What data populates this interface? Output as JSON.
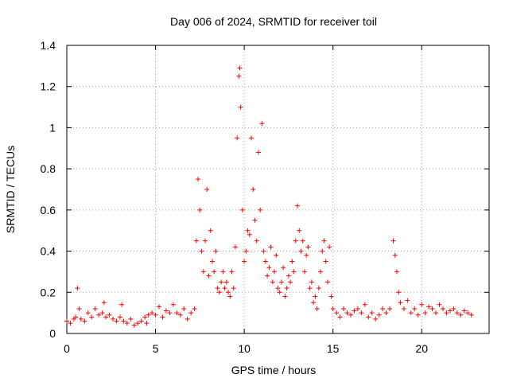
{
  "chart_data": {
    "type": "scatter",
    "title": "Day 006 of 2024, SRMTID for receiver toil",
    "xlabel": "GPS time / hours",
    "ylabel": "SRMTID / TECUs",
    "xlim": [
      0,
      23.8
    ],
    "ylim": [
      0,
      1.4
    ],
    "xticks": [
      0,
      5,
      10,
      15,
      20
    ],
    "xtick_labels": [
      "0",
      "5",
      "10",
      "15",
      "20"
    ],
    "yticks": [
      0,
      0.2,
      0.4,
      0.6,
      0.8,
      1.0,
      1.2,
      1.4
    ],
    "ytick_labels": [
      "0",
      "0.2",
      "0.4",
      "0.6",
      "0.8",
      "1",
      "1.2",
      "1.4"
    ],
    "grid": true,
    "marker": "plus",
    "color": "#ff0000",
    "series": [
      {
        "name": "toil",
        "x": [
          0.0,
          0.2,
          0.4,
          0.5,
          0.6,
          0.7,
          0.8,
          1.0,
          1.2,
          1.4,
          1.6,
          1.8,
          2.0,
          2.1,
          2.2,
          2.4,
          2.6,
          2.8,
          3.0,
          3.1,
          3.2,
          3.4,
          3.6,
          3.8,
          4.0,
          4.2,
          4.4,
          4.5,
          4.6,
          4.8,
          5.0,
          5.2,
          5.4,
          5.6,
          5.8,
          6.0,
          6.2,
          6.4,
          6.6,
          6.8,
          7.0,
          7.2,
          7.3,
          7.4,
          7.5,
          7.6,
          7.7,
          7.8,
          7.9,
          8.0,
          8.1,
          8.2,
          8.3,
          8.4,
          8.5,
          8.6,
          8.7,
          8.8,
          8.9,
          9.0,
          9.1,
          9.2,
          9.3,
          9.4,
          9.5,
          9.6,
          9.7,
          9.75,
          9.8,
          9.9,
          10.0,
          10.1,
          10.2,
          10.3,
          10.4,
          10.5,
          10.6,
          10.7,
          10.8,
          10.9,
          11.0,
          11.1,
          11.2,
          11.3,
          11.4,
          11.5,
          11.6,
          11.7,
          11.8,
          11.9,
          12.0,
          12.1,
          12.2,
          12.3,
          12.4,
          12.5,
          12.6,
          12.7,
          12.8,
          12.9,
          13.0,
          13.1,
          13.2,
          13.3,
          13.4,
          13.5,
          13.6,
          13.7,
          13.8,
          13.9,
          14.0,
          14.1,
          14.2,
          14.3,
          14.4,
          14.5,
          14.6,
          14.7,
          14.8,
          14.9,
          15.0,
          15.2,
          15.4,
          15.6,
          15.8,
          16.0,
          16.2,
          16.4,
          16.6,
          16.8,
          17.0,
          17.2,
          17.4,
          17.6,
          17.8,
          18.0,
          18.2,
          18.4,
          18.5,
          18.6,
          18.7,
          18.8,
          19.0,
          19.2,
          19.4,
          19.6,
          19.8,
          20.0,
          20.2,
          20.4,
          20.6,
          20.8,
          21.0,
          21.2,
          21.4,
          21.6,
          21.8,
          22.0,
          22.2,
          22.4,
          22.6,
          22.8
        ],
        "y": [
          0.06,
          0.05,
          0.07,
          0.08,
          0.22,
          0.12,
          0.07,
          0.06,
          0.1,
          0.08,
          0.12,
          0.09,
          0.1,
          0.15,
          0.08,
          0.09,
          0.07,
          0.06,
          0.08,
          0.14,
          0.06,
          0.05,
          0.07,
          0.04,
          0.05,
          0.06,
          0.08,
          0.05,
          0.09,
          0.1,
          0.09,
          0.13,
          0.08,
          0.11,
          0.1,
          0.14,
          0.1,
          0.09,
          0.12,
          0.07,
          0.1,
          0.12,
          0.45,
          0.75,
          0.6,
          0.4,
          0.3,
          0.45,
          0.7,
          0.28,
          0.5,
          0.35,
          0.3,
          0.4,
          0.22,
          0.2,
          0.25,
          0.3,
          0.22,
          0.25,
          0.2,
          0.18,
          0.3,
          0.22,
          0.42,
          0.95,
          1.25,
          1.29,
          1.1,
          0.6,
          0.35,
          0.4,
          0.5,
          0.48,
          0.95,
          0.7,
          0.55,
          0.45,
          0.88,
          0.6,
          1.02,
          0.4,
          0.35,
          0.28,
          0.32,
          0.42,
          0.25,
          0.3,
          0.38,
          0.22,
          0.2,
          0.25,
          0.32,
          0.18,
          0.22,
          0.28,
          0.25,
          0.35,
          0.3,
          0.45,
          0.62,
          0.5,
          0.4,
          0.45,
          0.3,
          0.38,
          0.42,
          0.22,
          0.25,
          0.15,
          0.18,
          0.12,
          0.22,
          0.3,
          0.4,
          0.45,
          0.35,
          0.25,
          0.42,
          0.18,
          0.12,
          0.1,
          0.08,
          0.12,
          0.1,
          0.09,
          0.11,
          0.12,
          0.1,
          0.14,
          0.08,
          0.1,
          0.07,
          0.09,
          0.12,
          0.1,
          0.12,
          0.45,
          0.38,
          0.3,
          0.2,
          0.15,
          0.12,
          0.16,
          0.1,
          0.12,
          0.09,
          0.14,
          0.1,
          0.13,
          0.12,
          0.1,
          0.14,
          0.12,
          0.1,
          0.11,
          0.12,
          0.1,
          0.09,
          0.11,
          0.1,
          0.09
        ]
      }
    ]
  }
}
